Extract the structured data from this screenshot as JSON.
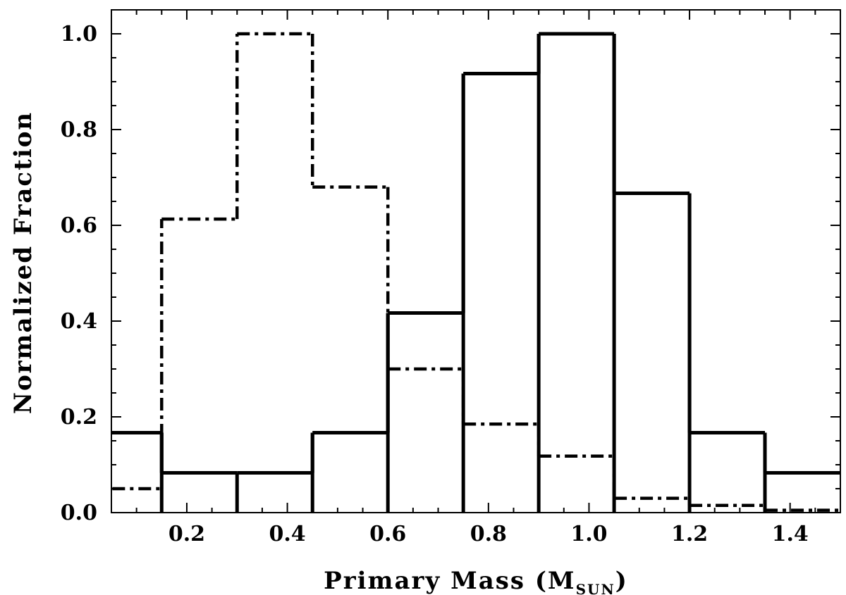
{
  "chart_data": {
    "type": "histogram",
    "xlabel": "Primary Mass (M",
    "xlabel_sub": "SUN",
    "xlabel_close": ")",
    "ylabel": "Normalized Fraction",
    "xlim": [
      0.05,
      1.5
    ],
    "ylim": [
      0.0,
      1.05
    ],
    "x_ticks": [
      "0.2",
      "0.4",
      "0.6",
      "0.8",
      "1.0",
      "1.2",
      "1.4"
    ],
    "x_tick_values": [
      0.2,
      0.4,
      0.6,
      0.8,
      1.0,
      1.2,
      1.4
    ],
    "y_ticks": [
      "0.0",
      "0.2",
      "0.4",
      "0.6",
      "0.8",
      "1.0"
    ],
    "y_tick_values": [
      0.0,
      0.2,
      0.4,
      0.6,
      0.8,
      1.0
    ],
    "bin_edges": [
      0.0,
      0.15,
      0.3,
      0.45,
      0.6,
      0.75,
      0.9,
      1.05,
      1.2,
      1.35,
      1.5
    ],
    "series": [
      {
        "style": "solid",
        "values": [
          0.167,
          0.083,
          0.083,
          0.167,
          0.417,
          0.917,
          1.0,
          0.667,
          0.167,
          0.083
        ]
      },
      {
        "style": "dash-dot",
        "values": [
          0.05,
          0.613,
          1.0,
          0.68,
          0.3,
          0.185,
          0.118,
          0.03,
          0.015,
          0.005
        ]
      }
    ],
    "grid": false,
    "legend": false
  }
}
